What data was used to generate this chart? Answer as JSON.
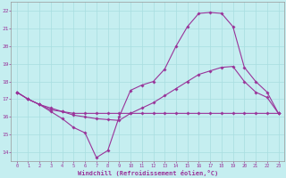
{
  "bg_color": "#c5eef0",
  "grid_color": "#a8dde0",
  "line_color": "#993399",
  "tick_color": "#993399",
  "xlabel": "Windchill (Refroidissement éolien,°C)",
  "xlim_min": -0.5,
  "xlim_max": 23.5,
  "ylim_min": 13.5,
  "ylim_max": 22.5,
  "xticks": [
    0,
    1,
    2,
    3,
    4,
    5,
    6,
    7,
    8,
    9,
    10,
    11,
    12,
    13,
    14,
    15,
    16,
    17,
    18,
    19,
    20,
    21,
    22,
    23
  ],
  "yticks": [
    14,
    15,
    16,
    17,
    18,
    19,
    20,
    21,
    22
  ],
  "line1_x": [
    0,
    1,
    2,
    3,
    4,
    5,
    6,
    7,
    8,
    9,
    10,
    11,
    12,
    13,
    14,
    15,
    16,
    17,
    18,
    19,
    20,
    21,
    22,
    23
  ],
  "line1_y": [
    17.4,
    17.0,
    16.7,
    16.3,
    15.9,
    15.4,
    15.1,
    13.7,
    14.1,
    16.0,
    17.5,
    17.8,
    18.0,
    18.7,
    20.0,
    21.1,
    21.85,
    21.9,
    21.85,
    21.1,
    18.8,
    18.0,
    17.4,
    16.2
  ],
  "line2_x": [
    0,
    1,
    2,
    3,
    4,
    5,
    6,
    7,
    8,
    9,
    10,
    11,
    12,
    13,
    14,
    15,
    16,
    17,
    18,
    19,
    20,
    21,
    22,
    23
  ],
  "line2_y": [
    17.4,
    17.0,
    16.7,
    16.5,
    16.3,
    16.1,
    16.0,
    15.9,
    15.85,
    15.8,
    16.2,
    16.5,
    16.8,
    17.2,
    17.6,
    18.0,
    18.4,
    18.6,
    18.8,
    18.85,
    18.0,
    17.4,
    17.1,
    16.2
  ],
  "line3_x": [
    0,
    1,
    2,
    3,
    4,
    5,
    6,
    7,
    8,
    9,
    10,
    11,
    12,
    13,
    14,
    15,
    16,
    17,
    18,
    19,
    20,
    21,
    22,
    23
  ],
  "line3_y": [
    17.4,
    17.0,
    16.7,
    16.4,
    16.3,
    16.2,
    16.2,
    16.2,
    16.2,
    16.2,
    16.2,
    16.2,
    16.2,
    16.2,
    16.2,
    16.2,
    16.2,
    16.2,
    16.2,
    16.2,
    16.2,
    16.2,
    16.2,
    16.2
  ]
}
